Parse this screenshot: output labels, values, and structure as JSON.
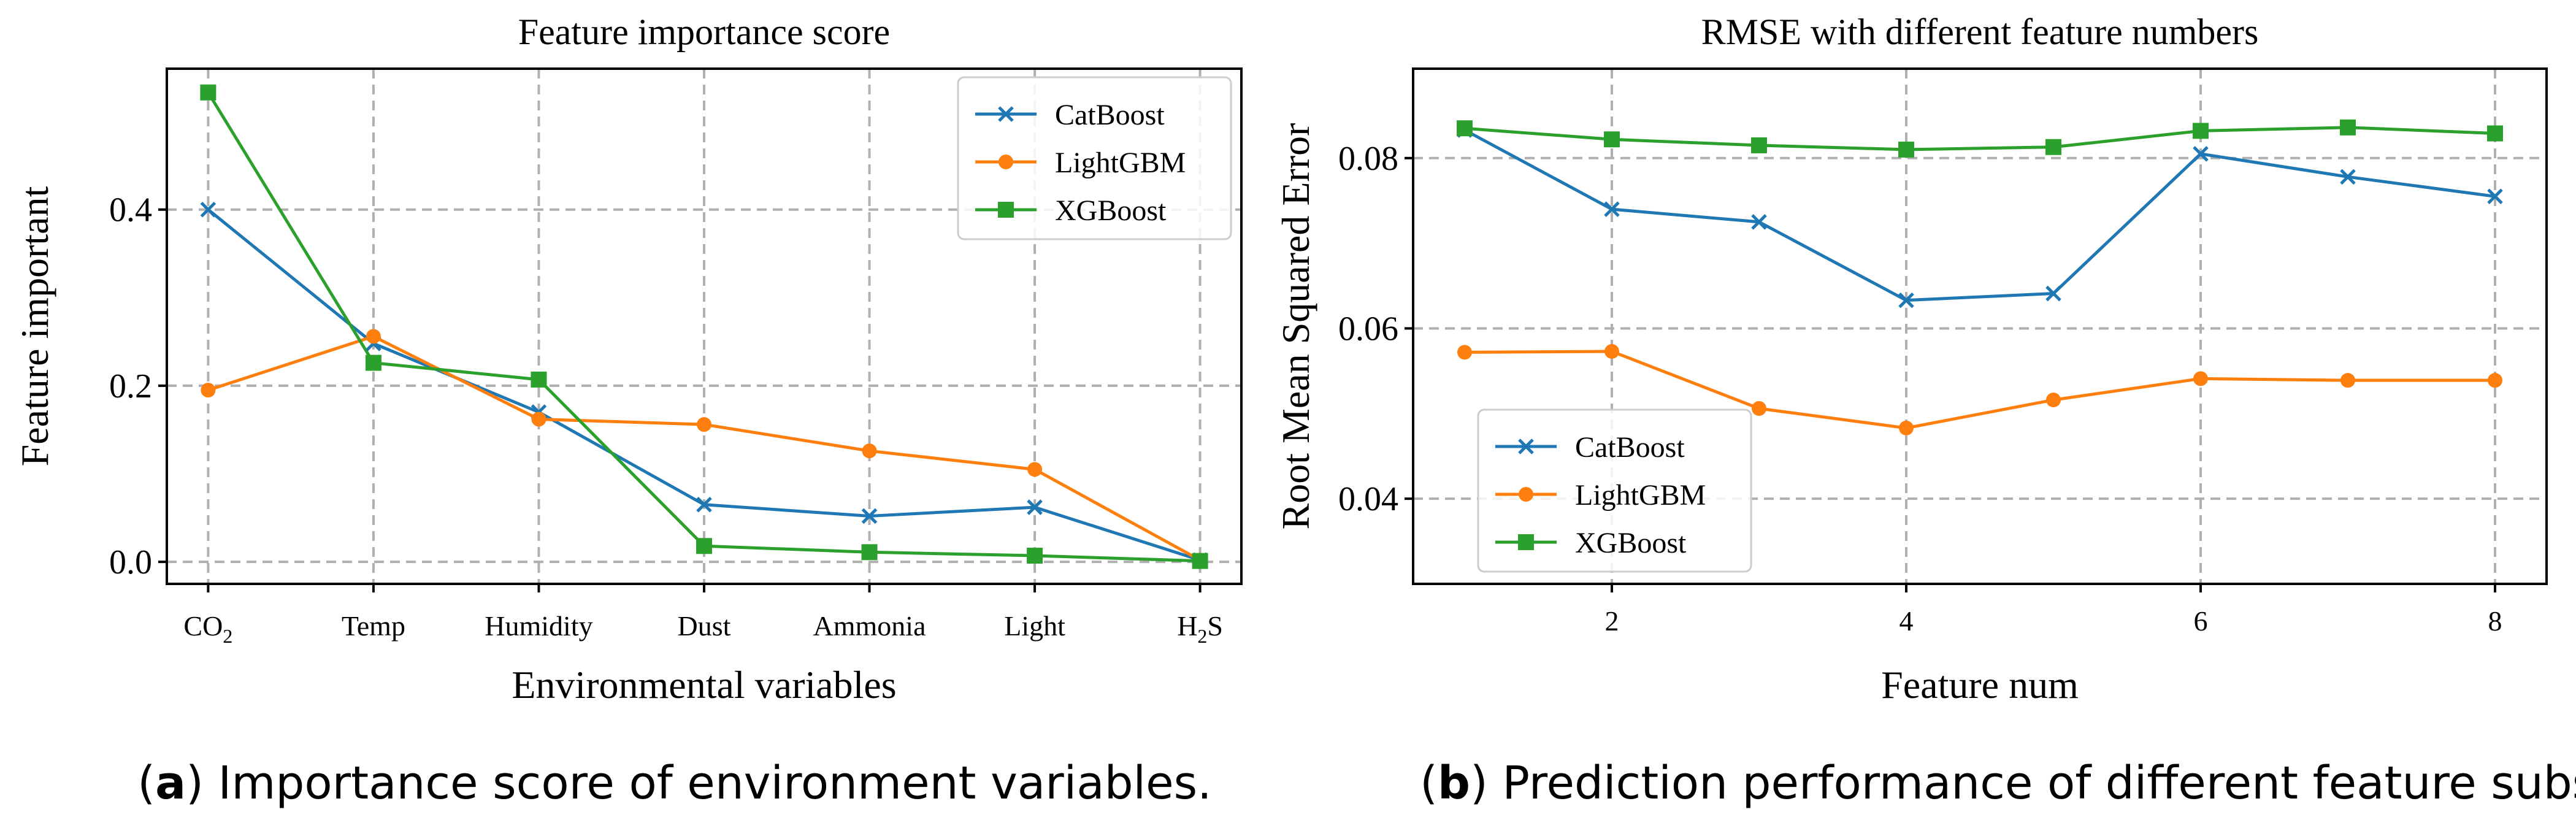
{
  "colors": {
    "catboost": "#1f77b4",
    "lightgbm": "#ff7f0e",
    "xgboost": "#2ca02c",
    "grid": "#b0b0b0",
    "axis": "#000000"
  },
  "chart_data": [
    {
      "id": "a",
      "type": "line",
      "title": "Feature importance score",
      "xlabel": "Environmental variables",
      "ylabel": "Feature important",
      "categories": [
        "CO2",
        "Temp",
        "Humidity",
        "Dust",
        "Ammonia",
        "Light",
        "H2S"
      ],
      "ylim": [
        -0.025,
        0.56
      ],
      "yticks": [
        0.0,
        0.2,
        0.4
      ],
      "ytick_labels": [
        "0.0",
        "0.2",
        "0.4"
      ],
      "grid": true,
      "legend_position": "top-right",
      "series": [
        {
          "name": "CatBoost",
          "marker": "x",
          "color": "#1f77b4",
          "values": [
            0.4,
            0.248,
            0.17,
            0.065,
            0.052,
            0.062,
            0.002
          ]
        },
        {
          "name": "LightGBM",
          "marker": "o",
          "color": "#ff7f0e",
          "values": [
            0.195,
            0.256,
            0.162,
            0.156,
            0.126,
            0.105,
            0.002
          ]
        },
        {
          "name": "XGBoost",
          "marker": "s",
          "color": "#2ca02c",
          "values": [
            0.533,
            0.226,
            0.207,
            0.018,
            0.011,
            0.007,
            0.001
          ]
        }
      ],
      "caption_letter": "a",
      "caption_text": " Importance score of environment variables."
    },
    {
      "id": "b",
      "type": "line",
      "title": "RMSE with different feature numbers",
      "xlabel": "Feature num",
      "ylabel": "Root Mean Squared Error",
      "x": [
        1,
        2,
        3,
        4,
        5,
        6,
        7,
        8
      ],
      "xlim": [
        0.65,
        8.35
      ],
      "ylim": [
        0.03,
        0.0905
      ],
      "xticks": [
        2,
        4,
        6,
        8
      ],
      "xtick_labels": [
        "2",
        "4",
        "6",
        "8"
      ],
      "yticks": [
        0.04,
        0.06,
        0.08
      ],
      "ytick_labels": [
        "0.04",
        "0.06",
        "0.08"
      ],
      "grid": true,
      "legend_position": "lower-left",
      "series": [
        {
          "name": "CatBoost",
          "marker": "x",
          "color": "#1f77b4",
          "values": [
            0.0833,
            0.074,
            0.0725,
            0.0633,
            0.0641,
            0.0805,
            0.0778,
            0.0755
          ]
        },
        {
          "name": "LightGBM",
          "marker": "o",
          "color": "#ff7f0e",
          "values": [
            0.0572,
            0.0573,
            0.0506,
            0.0483,
            0.0516,
            0.0541,
            0.0539,
            0.0539
          ]
        },
        {
          "name": "XGBoost",
          "marker": "s",
          "color": "#2ca02c",
          "values": [
            0.0835,
            0.0822,
            0.0815,
            0.081,
            0.0813,
            0.0832,
            0.0836,
            0.0829
          ]
        }
      ],
      "caption_letter": "b",
      "caption_text": " Prediction performance of different feature subsets."
    }
  ]
}
